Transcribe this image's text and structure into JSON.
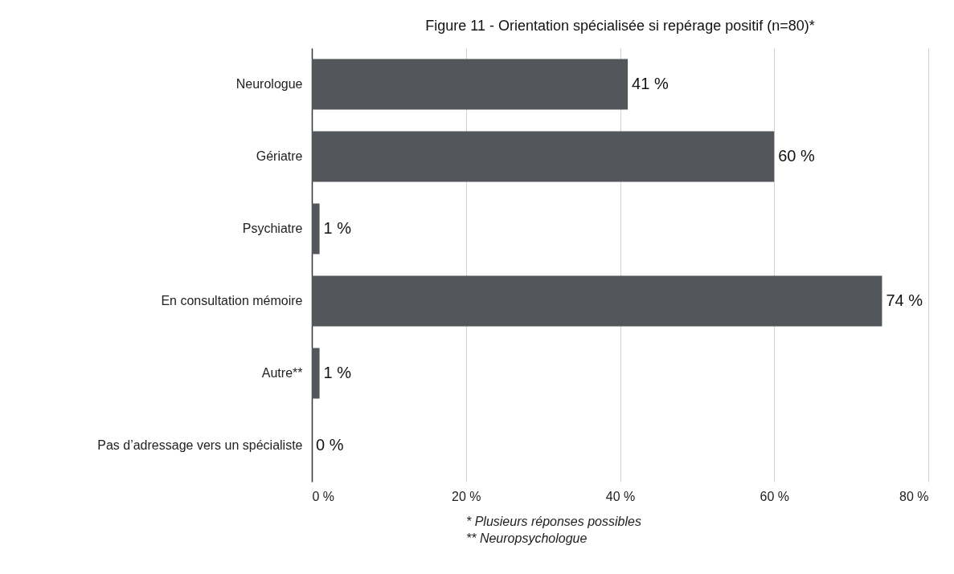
{
  "chart_data": {
    "type": "bar",
    "orientation": "horizontal",
    "title": "Figure 11 - Orientation spécialisée si repérage positif (n=80)*",
    "categories": [
      "Neurologue",
      "Gériatre",
      "Psychiatre",
      "En consultation mémoire",
      "Autre**",
      "Pas d’adressage vers un spécialiste"
    ],
    "values": [
      41,
      60,
      1,
      74,
      1,
      0
    ],
    "value_labels": [
      "41 %",
      "60 %",
      "1 %",
      "74 %",
      "1 %",
      "0 %"
    ],
    "color": "#53565a",
    "xlim": [
      0,
      80
    ],
    "xticks": [
      {
        "value": 0,
        "label": "0 %"
      },
      {
        "value": 20,
        "label": "20 %"
      },
      {
        "value": 40,
        "label": "40 %"
      },
      {
        "value": 60,
        "label": "60 %"
      },
      {
        "value": 80,
        "label": "80 %"
      }
    ],
    "grid": "x",
    "annotations": [
      "*  Plusieurs réponses possibles",
      "** Neuropsychologue"
    ]
  }
}
